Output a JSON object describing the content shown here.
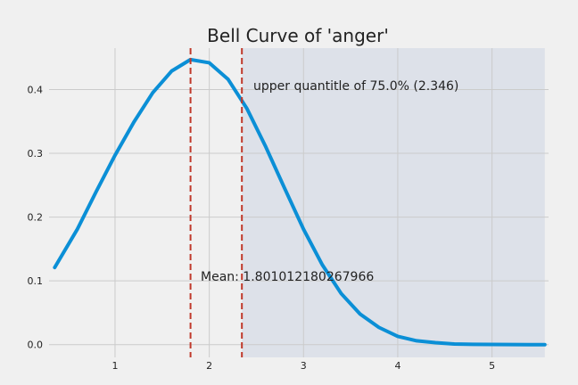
{
  "chart_data": {
    "type": "line",
    "title": "Bell Curve of 'anger'",
    "xlabel": "",
    "ylabel": "",
    "xlim": [
      0.3,
      5.6
    ],
    "ylim": [
      -0.02,
      0.465
    ],
    "x_ticks": [
      1,
      2,
      3,
      4,
      5
    ],
    "y_ticks": [
      0.0,
      0.1,
      0.2,
      0.3,
      0.4
    ],
    "x_tick_labels": [
      "1",
      "2",
      "3",
      "4",
      "5"
    ],
    "y_tick_labels": [
      "0.0",
      "0.1",
      "0.2",
      "0.3",
      "0.4"
    ],
    "grid": true,
    "series": [
      {
        "x": [
          0.36,
          0.6,
          0.8,
          1.0,
          1.2,
          1.4,
          1.6,
          1.8,
          2.0,
          2.2,
          2.4,
          2.6,
          2.8,
          3.0,
          3.2,
          3.4,
          3.6,
          3.8,
          4.0,
          4.2,
          4.4,
          4.6,
          4.8,
          5.0,
          5.2,
          5.4,
          5.56
        ],
        "y": [
          0.121,
          0.181,
          0.24,
          0.297,
          0.349,
          0.395,
          0.429,
          0.447,
          0.442,
          0.416,
          0.37,
          0.31,
          0.245,
          0.181,
          0.125,
          0.08,
          0.048,
          0.027,
          0.013,
          0.006,
          0.003,
          0.001,
          0.0005,
          0.0002,
          0.0001,
          0.0,
          0.0
        ],
        "color": "#0b8fd6"
      }
    ],
    "mean_line": {
      "x": 1.801,
      "color": "#c0392b",
      "label": "Mean: 1.801012180267966"
    },
    "quantile_line": {
      "x": 2.346,
      "color": "#c0392b",
      "label": "upper quantitle of 75.0% (2.346)"
    },
    "shaded_region": {
      "x_start": 2.346,
      "x_end": 5.56,
      "color": "#dde1e9"
    }
  }
}
